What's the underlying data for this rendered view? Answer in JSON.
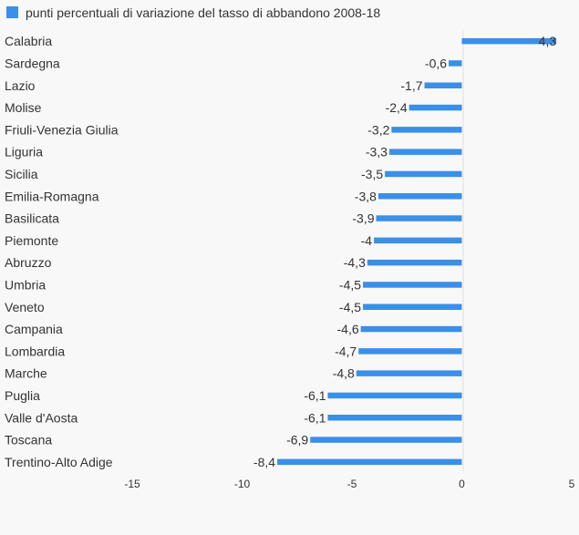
{
  "chart_data": {
    "type": "bar",
    "orientation": "horizontal",
    "legend": {
      "label": "punti percentuali di variazione del tasso di abbandono 2008-18",
      "position": "top-left"
    },
    "series": [
      {
        "name": "punti percentuali di variazione del tasso di abbandono 2008-18",
        "color": "#3a8fe8",
        "values": [
          4.3,
          -0.6,
          -1.7,
          -2.4,
          -3.2,
          -3.3,
          -3.5,
          -3.8,
          -3.9,
          -4,
          -4.3,
          -4.5,
          -4.5,
          -4.6,
          -4.7,
          -4.8,
          -6.1,
          -6.1,
          -6.9,
          -8.4
        ]
      }
    ],
    "categories": [
      "Calabria",
      "Sardegna",
      "Lazio",
      "Molise",
      "Friuli-Venezia Giulia",
      "Liguria",
      "Sicilia",
      "Emilia-Romagna",
      "Basilicata",
      "Piemonte",
      "Abruzzo",
      "Umbria",
      "Veneto",
      "Campania",
      "Lombardia",
      "Marche",
      "Puglia",
      "Valle d'Aosta",
      "Toscana",
      "Trentino-Alto Adige"
    ],
    "value_labels": [
      "4,3",
      "-0,6",
      "-1,7",
      "-2,4",
      "-3,2",
      "-3,3",
      "-3,5",
      "-3,8",
      "-3,9",
      "-4",
      "-4,3",
      "-4,5",
      "-4,5",
      "-4,6",
      "-4,7",
      "-4,8",
      "-6,1",
      "-6,1",
      "-6,9",
      "-8,4"
    ],
    "xlim": [
      -15,
      5
    ],
    "xticks": [
      -15,
      -10,
      -5,
      0,
      5
    ],
    "xtick_labels": [
      "-15",
      "-10",
      "-5",
      "0",
      "5"
    ],
    "grid": false
  }
}
